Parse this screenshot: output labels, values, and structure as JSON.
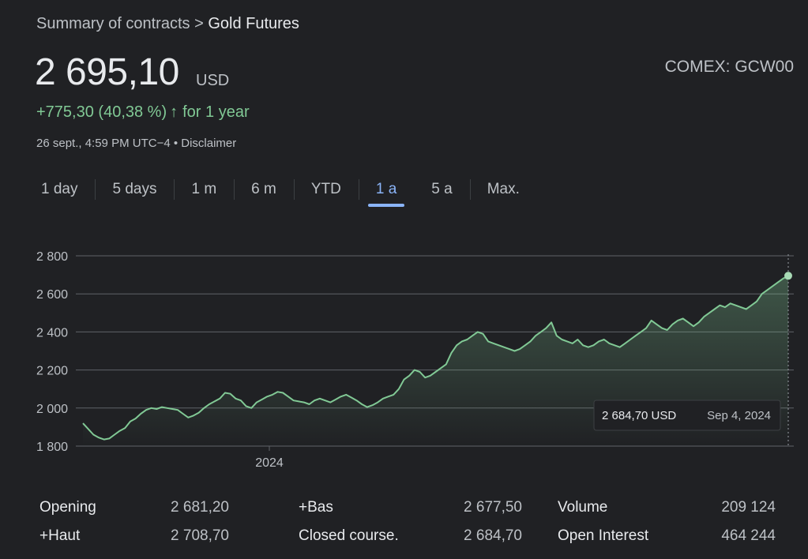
{
  "header": {
    "breadcrumb_parent": "Summary of contracts",
    "breadcrumb_sep": ">",
    "breadcrumb_current": "Gold Futures",
    "price": "2 695,10",
    "currency": "USD",
    "exchange": "COMEX: GCW00",
    "change": "+775,30 (40,38 %)",
    "change_arrow": "↑",
    "change_period": "for 1 year",
    "timestamp": "26 sept., 4:59 PM UTC−4 • Disclaimer"
  },
  "tabs": [
    {
      "label": "1 day"
    },
    {
      "label": "5 days"
    },
    {
      "label": "1 m"
    },
    {
      "label": "6 m"
    },
    {
      "label": "YTD"
    },
    {
      "label": "1 a",
      "active": true
    },
    {
      "label": "5 a"
    },
    {
      "label": "Max."
    }
  ],
  "colors": {
    "background": "#202124",
    "line": "#81c995",
    "active_tab": "#8ab4f8",
    "grid": "#5f6368"
  },
  "chart_data": {
    "type": "area",
    "y_ticks": [
      "2 800",
      "2 600",
      "2 400",
      "2 200",
      "2 000",
      "1 800"
    ],
    "y_tick_values": [
      2800,
      2600,
      2400,
      2200,
      2000,
      1800
    ],
    "ylim": [
      1800,
      2800
    ],
    "x_tick_labels": [
      "2024"
    ],
    "tooltip": {
      "value": "2 684,70 USD",
      "date": "Sep 4, 2024"
    },
    "values": [
      1920,
      1890,
      1860,
      1845,
      1835,
      1840,
      1860,
      1880,
      1895,
      1930,
      1945,
      1970,
      1990,
      2000,
      1995,
      2005,
      2000,
      1995,
      1990,
      1970,
      1950,
      1960,
      1975,
      2000,
      2020,
      2035,
      2050,
      2080,
      2075,
      2050,
      2040,
      2010,
      2000,
      2030,
      2045,
      2060,
      2070,
      2085,
      2080,
      2060,
      2040,
      2035,
      2030,
      2020,
      2040,
      2050,
      2040,
      2030,
      2045,
      2060,
      2070,
      2055,
      2040,
      2020,
      2005,
      2015,
      2030,
      2050,
      2060,
      2070,
      2100,
      2150,
      2170,
      2200,
      2190,
      2160,
      2170,
      2190,
      2210,
      2230,
      2290,
      2330,
      2350,
      2360,
      2380,
      2400,
      2390,
      2350,
      2340,
      2330,
      2320,
      2310,
      2300,
      2310,
      2330,
      2350,
      2380,
      2400,
      2420,
      2450,
      2380,
      2360,
      2350,
      2340,
      2360,
      2330,
      2320,
      2330,
      2350,
      2360,
      2340,
      2330,
      2320,
      2340,
      2360,
      2380,
      2400,
      2420,
      2460,
      2440,
      2420,
      2410,
      2440,
      2460,
      2470,
      2450,
      2430,
      2450,
      2480,
      2500,
      2520,
      2540,
      2530,
      2550,
      2540,
      2530,
      2520,
      2540,
      2560,
      2600,
      2620,
      2640,
      2660,
      2680,
      2695
    ]
  },
  "stats": [
    {
      "label": "Opening",
      "value": "2 681,20"
    },
    {
      "label": "+Haut",
      "value": "2 708,70"
    },
    {
      "label": "+Bas",
      "value": "2 677,50"
    },
    {
      "label": "Closed course.",
      "value": "2 684,70"
    },
    {
      "label": "Volume",
      "value": "209 124"
    },
    {
      "label": "Open Interest",
      "value": "464 244"
    }
  ]
}
